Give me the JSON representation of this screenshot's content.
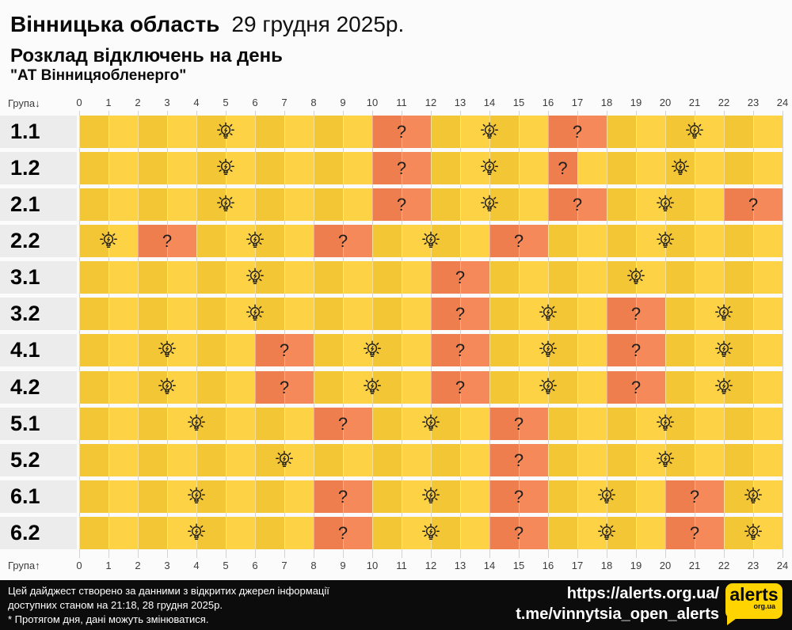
{
  "header": {
    "region": "Вінницька область",
    "date": "29 грудня 2025р.",
    "subtitle": "Розклад відключень на день",
    "provider": "\"АТ Вінницяобленерго\""
  },
  "chart_data": {
    "type": "heatmap",
    "title": "Розклад відключень на день",
    "x_axis": {
      "label_top": "Група↓",
      "label_bottom": "Група↑",
      "unit": "hour",
      "range": [
        0,
        24
      ],
      "ticks": [
        0,
        1,
        2,
        3,
        4,
        5,
        6,
        7,
        8,
        9,
        10,
        11,
        12,
        13,
        14,
        15,
        16,
        17,
        18,
        19,
        20,
        21,
        22,
        23,
        24
      ]
    },
    "outage_mark": "?",
    "bulb_icon": "lightbulb",
    "colors": {
      "power_on_dark": "#f3c636",
      "power_on_light": "#fdd244",
      "possible_outage_dark": "#ef7e4f",
      "possible_outage_light": "#f6895a",
      "row_label_bg": "#ececec",
      "grid_line": "#d2d2d2",
      "footer_bg": "#0c0c0c",
      "logo_yellow": "#ffd400"
    },
    "rows": [
      {
        "group": "1.1",
        "bulb_marks": [
          5,
          14,
          21
        ],
        "possible_outages": [
          {
            "start": 10,
            "end": 12
          },
          {
            "start": 16,
            "end": 18
          }
        ]
      },
      {
        "group": "1.2",
        "bulb_marks": [
          5,
          14,
          20.5
        ],
        "possible_outages": [
          {
            "start": 10,
            "end": 12
          },
          {
            "start": 16,
            "end": 17
          }
        ]
      },
      {
        "group": "2.1",
        "bulb_marks": [
          5,
          14,
          20
        ],
        "possible_outages": [
          {
            "start": 10,
            "end": 12
          },
          {
            "start": 16,
            "end": 18
          },
          {
            "start": 22,
            "end": 24
          }
        ]
      },
      {
        "group": "2.2",
        "bulb_marks": [
          1,
          6,
          12,
          20
        ],
        "possible_outages": [
          {
            "start": 2,
            "end": 4
          },
          {
            "start": 8,
            "end": 10
          },
          {
            "start": 14,
            "end": 16
          }
        ]
      },
      {
        "group": "3.1",
        "bulb_marks": [
          6,
          19
        ],
        "possible_outages": [
          {
            "start": 12,
            "end": 14
          }
        ]
      },
      {
        "group": "3.2",
        "bulb_marks": [
          6,
          16,
          22
        ],
        "possible_outages": [
          {
            "start": 12,
            "end": 14
          },
          {
            "start": 18,
            "end": 20
          }
        ]
      },
      {
        "group": "4.1",
        "bulb_marks": [
          3,
          10,
          16,
          22
        ],
        "possible_outages": [
          {
            "start": 6,
            "end": 8
          },
          {
            "start": 12,
            "end": 14
          },
          {
            "start": 18,
            "end": 20
          }
        ]
      },
      {
        "group": "4.2",
        "bulb_marks": [
          3,
          10,
          16,
          22
        ],
        "possible_outages": [
          {
            "start": 6,
            "end": 8
          },
          {
            "start": 12,
            "end": 14
          },
          {
            "start": 18,
            "end": 20
          }
        ]
      },
      {
        "group": "5.1",
        "bulb_marks": [
          4,
          12,
          20
        ],
        "possible_outages": [
          {
            "start": 8,
            "end": 10
          },
          {
            "start": 14,
            "end": 16
          }
        ]
      },
      {
        "group": "5.2",
        "bulb_marks": [
          7,
          20
        ],
        "possible_outages": [
          {
            "start": 14,
            "end": 16
          }
        ]
      },
      {
        "group": "6.1",
        "bulb_marks": [
          4,
          12,
          18,
          23
        ],
        "possible_outages": [
          {
            "start": 8,
            "end": 10
          },
          {
            "start": 14,
            "end": 16
          },
          {
            "start": 20,
            "end": 22
          }
        ]
      },
      {
        "group": "6.2",
        "bulb_marks": [
          4,
          12,
          18,
          23
        ],
        "possible_outages": [
          {
            "start": 8,
            "end": 10
          },
          {
            "start": 14,
            "end": 16
          },
          {
            "start": 20,
            "end": 22
          }
        ]
      }
    ]
  },
  "footer": {
    "line1": "Цей дайджест створено за данними з відкритих джерел інформації",
    "line2": "доступних станом на 21:18, 28 грудня 2025р.",
    "line3": "* Протягом дня, дані можуть змінюватися.",
    "url1": "https://alerts.org.ua/",
    "url2": "t.me/vinnytsia_open_alerts",
    "logo_title": "alerts",
    "logo_sub": "org.ua"
  }
}
